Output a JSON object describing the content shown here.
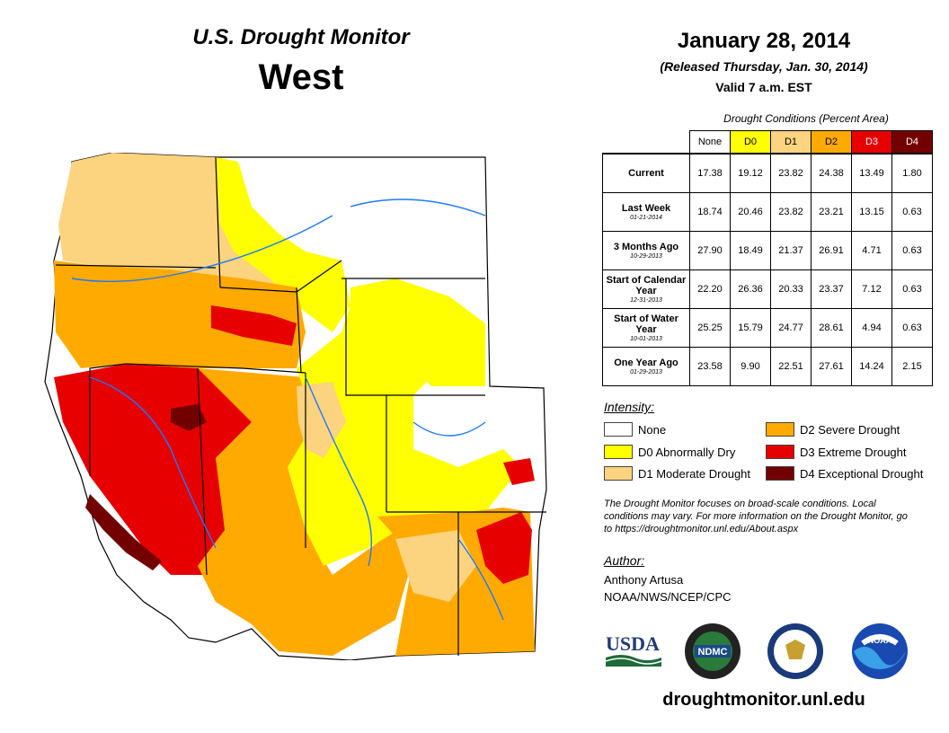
{
  "header": {
    "subtitle": "U.S. Drought Monitor",
    "region": "West",
    "date": "January 28, 2014",
    "released": "(Released Thursday, Jan. 30, 2014)",
    "valid": "Valid 7 a.m. EST"
  },
  "table": {
    "caption": "Drought Conditions (Percent Area)",
    "columns": [
      "None",
      "D0",
      "D1",
      "D2",
      "D3",
      "D4"
    ],
    "column_colors": [
      "#ffffff",
      "#ffff00",
      "#fcd37f",
      "#ffaa00",
      "#e60000",
      "#730000"
    ],
    "rows": [
      {
        "label": "Current",
        "date": "",
        "values": [
          "17.38",
          "19.12",
          "23.82",
          "24.38",
          "13.49",
          "1.80"
        ]
      },
      {
        "label": "Last Week",
        "date": "01-21-2014",
        "values": [
          "18.74",
          "20.46",
          "23.82",
          "23.21",
          "13.15",
          "0.63"
        ]
      },
      {
        "label": "3 Months Ago",
        "date": "10-29-2013",
        "values": [
          "27.90",
          "18.49",
          "21.37",
          "26.91",
          "4.71",
          "0.63"
        ]
      },
      {
        "label": "Start of Calendar Year",
        "date": "12-31-2013",
        "values": [
          "22.20",
          "26.36",
          "20.33",
          "23.37",
          "7.12",
          "0.63"
        ]
      },
      {
        "label": "Start of Water Year",
        "date": "10-01-2013",
        "values": [
          "25.25",
          "15.79",
          "24.77",
          "28.61",
          "4.94",
          "0.63"
        ]
      },
      {
        "label": "One Year Ago",
        "date": "01-29-2013",
        "values": [
          "23.58",
          "9.90",
          "22.51",
          "27.61",
          "14.24",
          "2.15"
        ]
      }
    ]
  },
  "legend": {
    "title": "Intensity:",
    "items": [
      {
        "label": "None",
        "color": "#ffffff"
      },
      {
        "label": "D0 Abnormally Dry",
        "color": "#ffff00"
      },
      {
        "label": "D1 Moderate Drought",
        "color": "#fcd37f"
      },
      {
        "label": "D2 Severe Drought",
        "color": "#ffaa00"
      },
      {
        "label": "D3 Extreme Drought",
        "color": "#e60000"
      },
      {
        "label": "D4 Exceptional Drought",
        "color": "#730000"
      }
    ]
  },
  "note": "The Drought Monitor focuses on broad-scale conditions. Local conditions may vary. For more information on the Drought Monitor, go to https://droughtmonitor.unl.edu/About.aspx",
  "author": {
    "title": "Author:",
    "name": "Anthony Artusa",
    "org": "NOAA/NWS/NCEP/CPC"
  },
  "logos": {
    "usda": "USDA",
    "ndmc": "NDMC",
    "noaa": "NOAA"
  },
  "website": "droughtmonitor.unl.edu"
}
